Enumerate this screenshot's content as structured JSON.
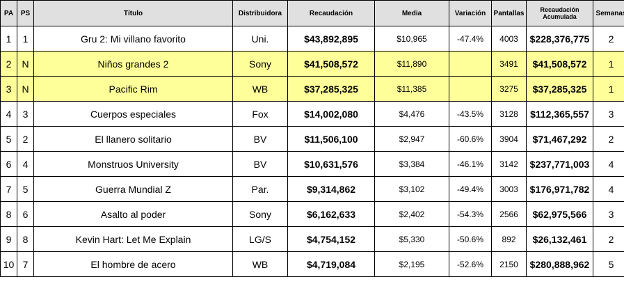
{
  "headers": {
    "pa": "PA",
    "ps": "PS",
    "titulo": "Título",
    "distribuidora": "Distribuidora",
    "recaudacion": "Recaudación",
    "media": "Media",
    "variacion": "Variación",
    "pantallas": "Pantallas",
    "acumulada_1": "Recaudación",
    "acumulada_2": "Acumulada",
    "semanas": "Semanas"
  },
  "highlight_color": "#ffff99",
  "header_color": "#e0e0e0",
  "rows": [
    {
      "pa": "1",
      "ps": "1",
      "titulo": "Gru 2: Mi villano favorito",
      "distribuidora": "Uni.",
      "recaudacion": "$43,892,895",
      "media": "$10,965",
      "variacion": "-47.4%",
      "pantallas": "4003",
      "acumulada": "$228,376,775",
      "semanas": "2",
      "new": false
    },
    {
      "pa": "2",
      "ps": "N",
      "titulo": "Niños grandes 2",
      "distribuidora": "Sony",
      "recaudacion": "$41,508,572",
      "media": "$11,890",
      "variacion": "",
      "pantallas": "3491",
      "acumulada": "$41,508,572",
      "semanas": "1",
      "new": true
    },
    {
      "pa": "3",
      "ps": "N",
      "titulo": "Pacific Rim",
      "distribuidora": "WB",
      "recaudacion": "$37,285,325",
      "media": "$11,385",
      "variacion": "",
      "pantallas": "3275",
      "acumulada": "$37,285,325",
      "semanas": "1",
      "new": true
    },
    {
      "pa": "4",
      "ps": "3",
      "titulo": "Cuerpos especiales",
      "distribuidora": "Fox",
      "recaudacion": "$14,002,080",
      "media": "$4,476",
      "variacion": "-43.5%",
      "pantallas": "3128",
      "acumulada": "$112,365,557",
      "semanas": "3",
      "new": false
    },
    {
      "pa": "5",
      "ps": "2",
      "titulo": "El llanero solitario",
      "distribuidora": "BV",
      "recaudacion": "$11,506,100",
      "media": "$2,947",
      "variacion": "-60.6%",
      "pantallas": "3904",
      "acumulada": "$71,467,292",
      "semanas": "2",
      "new": false
    },
    {
      "pa": "6",
      "ps": "4",
      "titulo": "Monstruos University",
      "distribuidora": "BV",
      "recaudacion": "$10,631,576",
      "media": "$3,384",
      "variacion": "-46.1%",
      "pantallas": "3142",
      "acumulada": "$237,771,003",
      "semanas": "4",
      "new": false
    },
    {
      "pa": "7",
      "ps": "5",
      "titulo": "Guerra Mundial Z",
      "distribuidora": "Par.",
      "recaudacion": "$9,314,862",
      "media": "$3,102",
      "variacion": "-49.4%",
      "pantallas": "3003",
      "acumulada": "$176,971,782",
      "semanas": "4",
      "new": false
    },
    {
      "pa": "8",
      "ps": "6",
      "titulo": "Asalto al poder",
      "distribuidora": "Sony",
      "recaudacion": "$6,162,633",
      "media": "$2,402",
      "variacion": "-54.3%",
      "pantallas": "2566",
      "acumulada": "$62,975,566",
      "semanas": "3",
      "new": false
    },
    {
      "pa": "9",
      "ps": "8",
      "titulo": "Kevin Hart: Let Me Explain",
      "distribuidora": "LG/S",
      "recaudacion": "$4,754,152",
      "media": "$5,330",
      "variacion": "-50.6%",
      "pantallas": "892",
      "acumulada": "$26,132,461",
      "semanas": "2",
      "new": false
    },
    {
      "pa": "10",
      "ps": "7",
      "titulo": "El hombre de acero",
      "distribuidora": "WB",
      "recaudacion": "$4,719,084",
      "media": "$2,195",
      "variacion": "-52.6%",
      "pantallas": "2150",
      "acumulada": "$280,888,962",
      "semanas": "5",
      "new": false
    }
  ]
}
